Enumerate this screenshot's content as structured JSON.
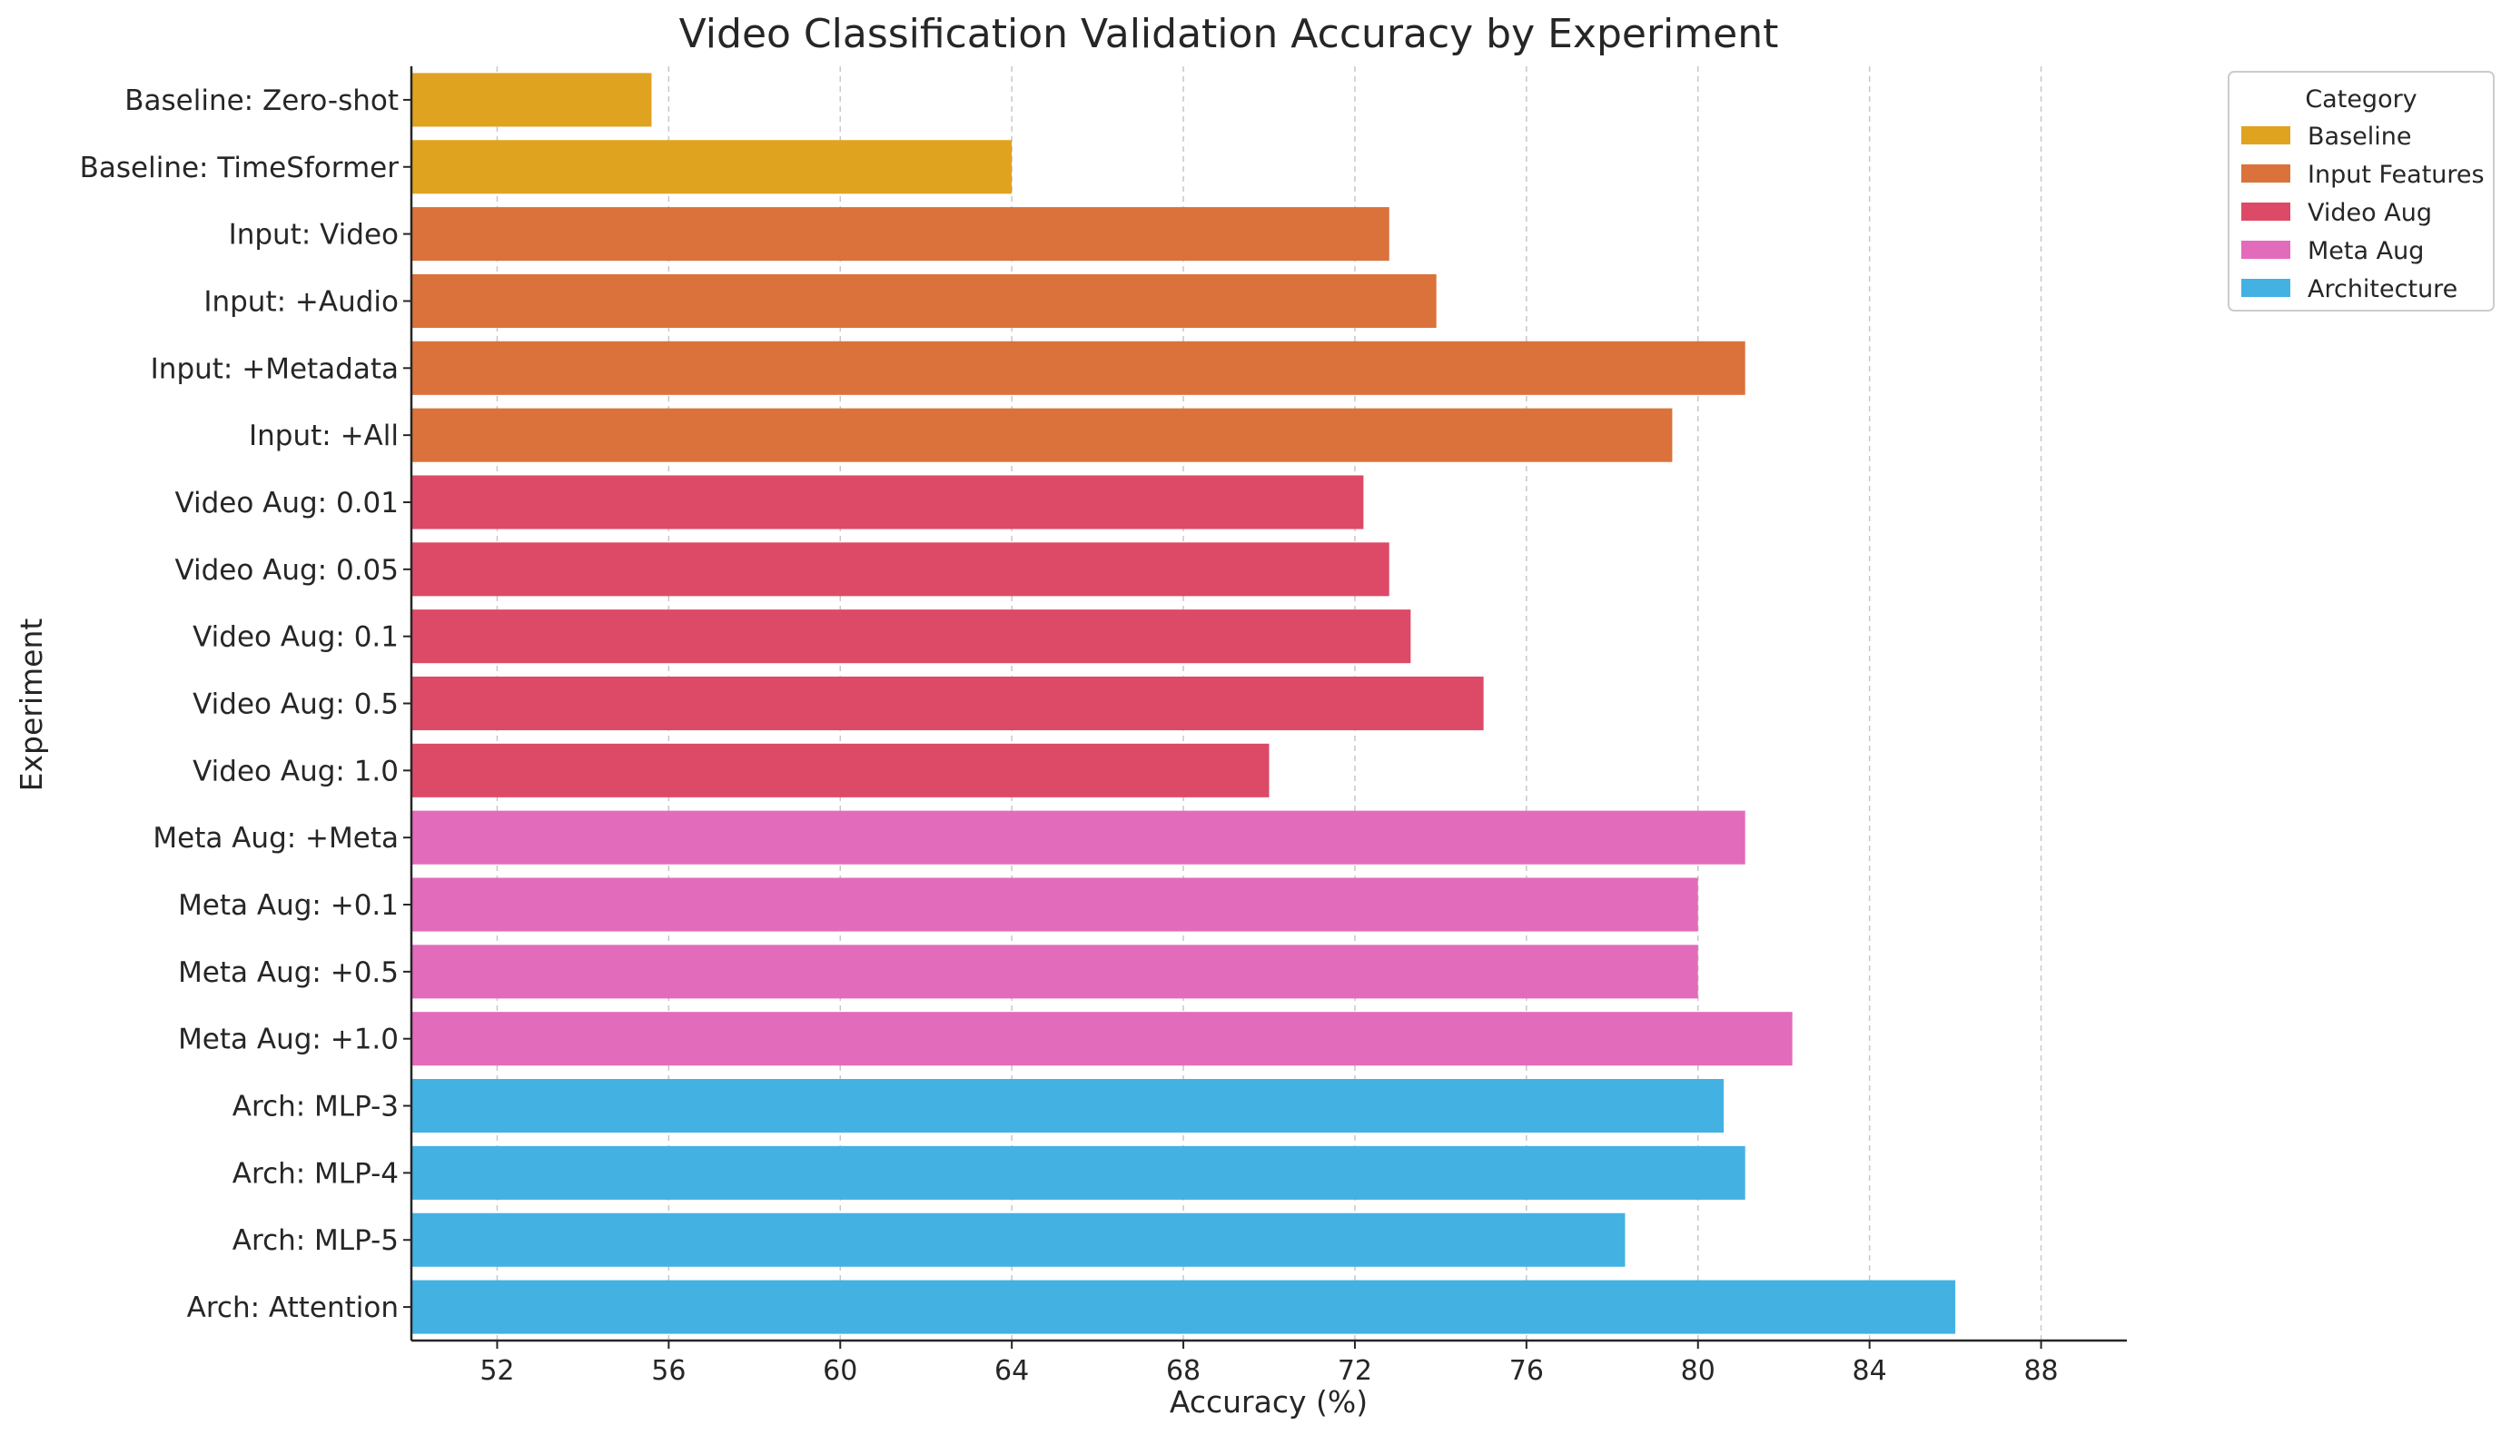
{
  "chart_data": {
    "type": "bar",
    "orientation": "horizontal",
    "title": "Video Classification Validation Accuracy by Experiment",
    "xlabel": "Accuracy (%)",
    "ylabel": "Experiment",
    "xlim": [
      50,
      90
    ],
    "xticks": [
      52,
      56,
      60,
      64,
      68,
      72,
      76,
      80,
      84,
      88
    ],
    "grid": "x-dashed",
    "legend": {
      "title": "Category",
      "placement": "outside top-right",
      "entries": [
        {
          "label": "Baseline",
          "color": "#E0A320"
        },
        {
          "label": "Input Features",
          "color": "#DB723B"
        },
        {
          "label": "Video Aug",
          "color": "#DD4A67"
        },
        {
          "label": "Meta Aug",
          "color": "#E36BBB"
        },
        {
          "label": "Architecture",
          "color": "#44B1E3"
        }
      ]
    },
    "categories": [
      "Baseline: Zero-shot",
      "Baseline: TimeSformer",
      "Input: Video",
      "Input: +Audio",
      "Input: +Metadata",
      "Input: +All",
      "Video Aug: 0.01",
      "Video Aug: 0.05",
      "Video Aug: 0.1",
      "Video Aug: 0.5",
      "Video Aug: 1.0",
      "Meta Aug: +Meta",
      "Meta Aug: +0.1",
      "Meta Aug: +0.5",
      "Meta Aug: +1.0",
      "Arch: MLP-3",
      "Arch: MLP-4",
      "Arch: MLP-5",
      "Arch: Attention"
    ],
    "values": [
      55.6,
      64.0,
      72.8,
      73.9,
      81.1,
      79.4,
      72.2,
      72.8,
      73.3,
      75.0,
      70.0,
      81.1,
      80.0,
      80.0,
      82.2,
      80.6,
      81.1,
      78.3,
      86.0
    ],
    "groups": [
      "Baseline",
      "Baseline",
      "Input Features",
      "Input Features",
      "Input Features",
      "Input Features",
      "Video Aug",
      "Video Aug",
      "Video Aug",
      "Video Aug",
      "Video Aug",
      "Meta Aug",
      "Meta Aug",
      "Meta Aug",
      "Meta Aug",
      "Architecture",
      "Architecture",
      "Architecture",
      "Architecture"
    ]
  }
}
